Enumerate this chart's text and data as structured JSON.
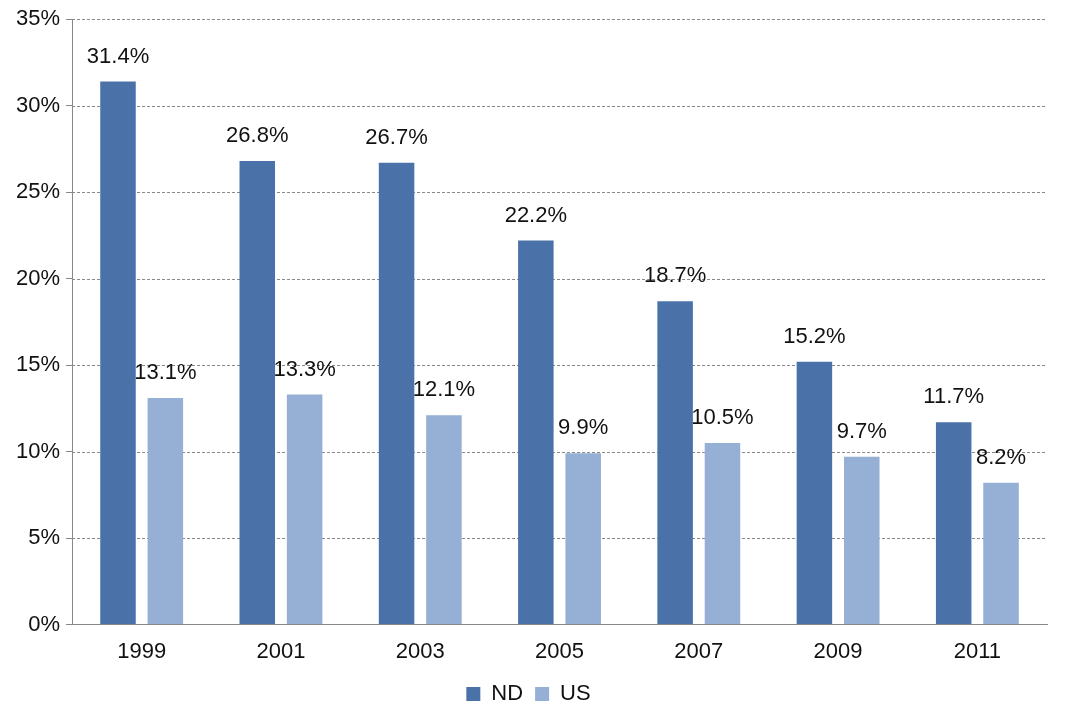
{
  "chart_data": {
    "type": "bar",
    "categories": [
      "1999",
      "2001",
      "2003",
      "2005",
      "2007",
      "2009",
      "2011"
    ],
    "series": [
      {
        "name": "ND",
        "color": "#4a72a8",
        "values": [
          31.4,
          26.8,
          26.7,
          22.2,
          18.7,
          15.2,
          11.7
        ],
        "value_labels": [
          "31.4%",
          "26.8%",
          "26.7%",
          "22.2%",
          "18.7%",
          "15.2%",
          "11.7%"
        ]
      },
      {
        "name": "US",
        "color": "#95afd5",
        "values": [
          13.1,
          13.3,
          12.1,
          9.9,
          10.5,
          9.7,
          8.2
        ],
        "value_labels": [
          "13.1%",
          "13.3%",
          "12.1%",
          "9.9%",
          "10.5%",
          "9.7%",
          "8.2%"
        ]
      }
    ],
    "ylim": [
      0,
      35
    ],
    "yticks": [
      {
        "value": 0,
        "label": "0%"
      },
      {
        "value": 5,
        "label": "5%"
      },
      {
        "value": 10,
        "label": "10%"
      },
      {
        "value": 15,
        "label": "15%"
      },
      {
        "value": 20,
        "label": "20%"
      },
      {
        "value": 25,
        "label": "25%"
      },
      {
        "value": 30,
        "label": "30%"
      },
      {
        "value": 35,
        "label": "35%"
      }
    ],
    "grid": "y",
    "legend": "bottom"
  }
}
